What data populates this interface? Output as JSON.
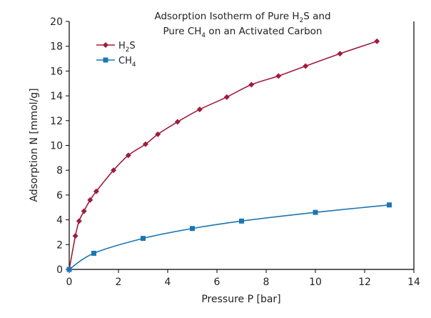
{
  "chart_data": {
    "type": "line",
    "title_line1_parts": [
      "Adsorption Isotherm of Pure H",
      "2",
      "S and"
    ],
    "title_line2_parts": [
      "Pure CH",
      "4",
      " on an Activated Carbon"
    ],
    "xlabel": "Pressure P [bar]",
    "ylabel": "Adsorption N [mmol/g]",
    "xlim": [
      0,
      14
    ],
    "ylim": [
      0,
      20
    ],
    "xticks": [
      0,
      2,
      4,
      6,
      8,
      10,
      12,
      14
    ],
    "yticks": [
      0,
      2,
      4,
      6,
      8,
      10,
      12,
      14,
      16,
      18,
      20
    ],
    "grid": false,
    "legend_position": "top-left",
    "series": [
      {
        "name_parts": [
          "H",
          "2",
          "S"
        ],
        "color": "#a11c3b",
        "marker": "diamond",
        "x": [
          0,
          0.25,
          0.4,
          0.6,
          0.85,
          1.1,
          1.8,
          2.4,
          3.1,
          3.6,
          4.4,
          5.3,
          6.4,
          7.4,
          8.5,
          9.6,
          11.0,
          12.5
        ],
        "y": [
          0,
          2.7,
          3.9,
          4.7,
          5.6,
          6.3,
          8.0,
          9.2,
          10.1,
          10.9,
          11.9,
          12.9,
          13.9,
          14.9,
          15.6,
          16.4,
          17.4,
          18.4
        ]
      },
      {
        "name_parts": [
          "CH",
          "4"
        ],
        "color": "#1b76b3",
        "marker": "square",
        "x": [
          0,
          1.0,
          3.0,
          5.0,
          7.0,
          10.0,
          13.0
        ],
        "y": [
          0,
          1.3,
          2.5,
          3.3,
          3.9,
          4.6,
          5.2
        ]
      }
    ]
  }
}
